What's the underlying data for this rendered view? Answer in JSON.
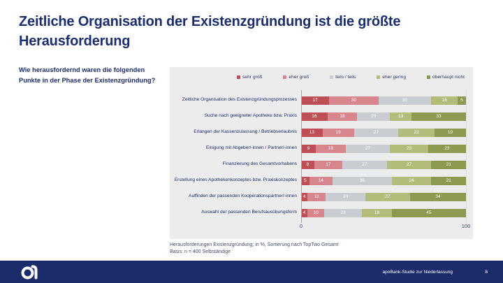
{
  "slide": {
    "title": {
      "full": "Zeitliche Organisation der Existenzgründung ist die größte Herausforderung",
      "line1": "Zeitliche Organisation der Existenzgründung ist die größte",
      "line2": "Herausforderung"
    },
    "question": "Wie herausfordernd waren die folgenden Punkte in der Phase der Existenzgründung?",
    "footnote": {
      "line1": "Herausforderungen Existenzgründung; in %, Sortierung nach TopTwo Gesamt",
      "line2": "Basis: n = 400 Selbständige"
    },
    "footer": {
      "logo_icon": "apobank-a-logo",
      "study_label": "apoBank-Studie zur Niederlassung",
      "page_number": "8"
    }
  },
  "colors": {
    "brand_navy": "#1b2e6d",
    "footer_bar": "#1c2b69",
    "panel_background": "#ececec",
    "value_label_text": "#ffffff"
  },
  "chart_data": {
    "type": "bar",
    "orientation": "horizontal-stacked",
    "legend_position": "top",
    "xlim": [
      0,
      100
    ],
    "x_ticks": [
      "0",
      "100"
    ],
    "unit": "%",
    "categories": [
      "Zeitliche Organisation des Existenzgründungsprozesses",
      "Suche nach geeigneter Apotheke bzw. Praxis",
      "Erlangen der Kassenzulassung / Betriebserlaubnis",
      "Einigung mit Abgeber/-innen / Partner/-innen",
      "Finanzierung des Gesamtvorhabens",
      "Erstellung eines Apothekenkonzeptes bzw. Praxiskonzeptes",
      "Auffinden der passenden Kooperationspartner/-innen",
      "Auswahl der passenden Berufsausübungsform"
    ],
    "series": [
      {
        "name": "sehr groß",
        "color": "#bf4f57",
        "values": [
          17,
          16,
          13,
          9,
          8,
          5,
          4,
          4
        ]
      },
      {
        "name": "eher groß",
        "color": "#d8868d",
        "values": [
          30,
          18,
          19,
          18,
          17,
          14,
          11,
          10
        ]
      },
      {
        "name": "teils / teils",
        "color": "#c9cdd2",
        "values": [
          32,
          20,
          27,
          27,
          27,
          36,
          24,
          23
        ]
      },
      {
        "name": "eher gering",
        "color": "#b4bc7c",
        "values": [
          16,
          13,
          22,
          23,
          27,
          24,
          27,
          18
        ]
      },
      {
        "name": "überhaupt nicht",
        "color": "#8c9a50",
        "values": [
          5,
          33,
          19,
          23,
          21,
          21,
          34,
          45
        ]
      }
    ]
  }
}
